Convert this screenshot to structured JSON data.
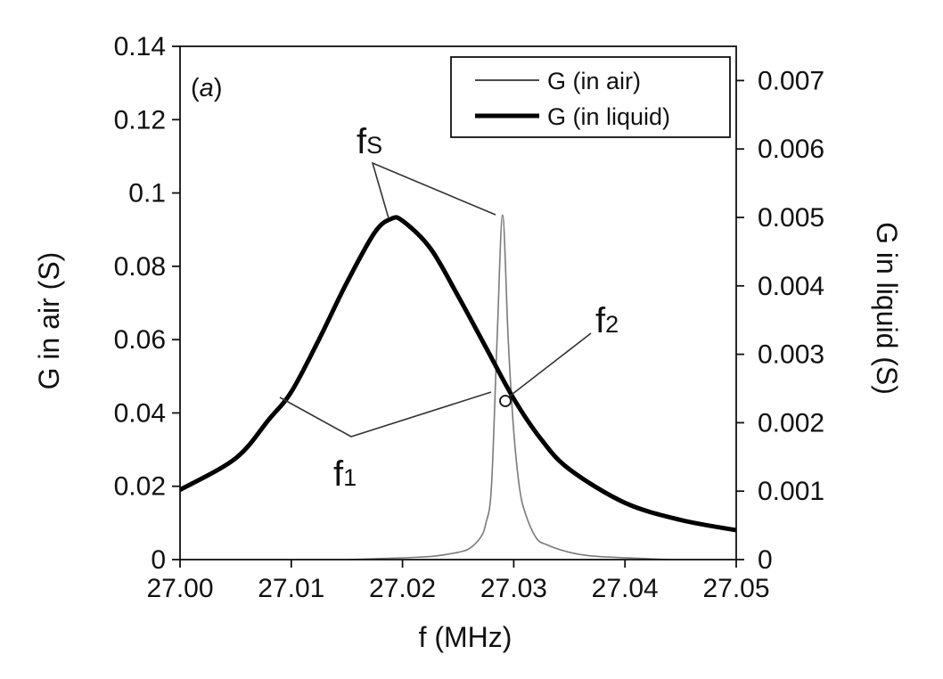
{
  "chart_data": {
    "type": "line",
    "panel_label": "(a)",
    "x": [
      27.0,
      27.005,
      27.01,
      27.015,
      27.018,
      27.019,
      27.02,
      27.022,
      27.025,
      27.0275,
      27.029,
      27.03,
      27.035,
      27.04,
      27.045,
      27.05
    ],
    "xlabel": "f (MHz)",
    "xlim": [
      27.0,
      27.05
    ],
    "x_ticks": [
      "27.00",
      "27.01",
      "27.02",
      "27.03",
      "27.04",
      "27.05"
    ],
    "y_left": {
      "label": "G in air (S)",
      "lim": [
        0,
        0.14
      ],
      "ticks": [
        "0",
        "0.02",
        "0.04",
        "0.06",
        "0.08",
        "0.1",
        "0.12",
        "0.14"
      ]
    },
    "y_right": {
      "label": "G in liquid (S)",
      "lim": [
        0,
        0.0075
      ],
      "ticks": [
        "0",
        "0.001",
        "0.002",
        "0.003",
        "0.004",
        "0.005",
        "0.006",
        "0.007"
      ]
    },
    "series": [
      {
        "name": "G (in air)",
        "axis": "left",
        "style": "thin",
        "color": "#7a7a7a",
        "x": [
          27.015,
          27.018,
          27.021,
          27.023,
          27.025,
          27.026,
          27.027,
          27.0275,
          27.028,
          27.0285,
          27.029,
          27.0295,
          27.03,
          27.0305,
          27.031,
          27.032,
          27.033,
          27.035,
          27.037,
          27.04,
          27.044
        ],
        "y": [
          0.0,
          0.0003,
          0.0006,
          0.001,
          0.002,
          0.003,
          0.006,
          0.01,
          0.02,
          0.06,
          0.094,
          0.06,
          0.035,
          0.02,
          0.013,
          0.006,
          0.004,
          0.002,
          0.001,
          0.0005,
          0.0
        ]
      },
      {
        "name": "G (in liquid)",
        "axis": "right",
        "style": "thick",
        "color": "#000000",
        "x": [
          27.0,
          27.005,
          27.008,
          27.01,
          27.0125,
          27.015,
          27.0175,
          27.019,
          27.02,
          27.0225,
          27.025,
          27.0275,
          27.03,
          27.0325,
          27.035,
          27.04,
          27.045,
          27.05
        ],
        "y": [
          0.00102,
          0.00148,
          0.00205,
          0.00245,
          0.00322,
          0.00405,
          0.00478,
          0.00498,
          0.00495,
          0.00455,
          0.00385,
          0.0031,
          0.00235,
          0.00175,
          0.00132,
          0.00083,
          0.00058,
          0.00043
        ]
      }
    ],
    "legend": {
      "position": "top-right",
      "entries": [
        "G (in air)",
        "G (in liquid)"
      ]
    },
    "annotations": [
      {
        "label": "f",
        "sub": "S",
        "note": "points to both resonance peaks"
      },
      {
        "label": "f",
        "sub": "2",
        "note": "open circle at the crossing point"
      },
      {
        "label": "f",
        "sub": "1",
        "note": "points to the two half-power points"
      }
    ],
    "grid": false
  }
}
